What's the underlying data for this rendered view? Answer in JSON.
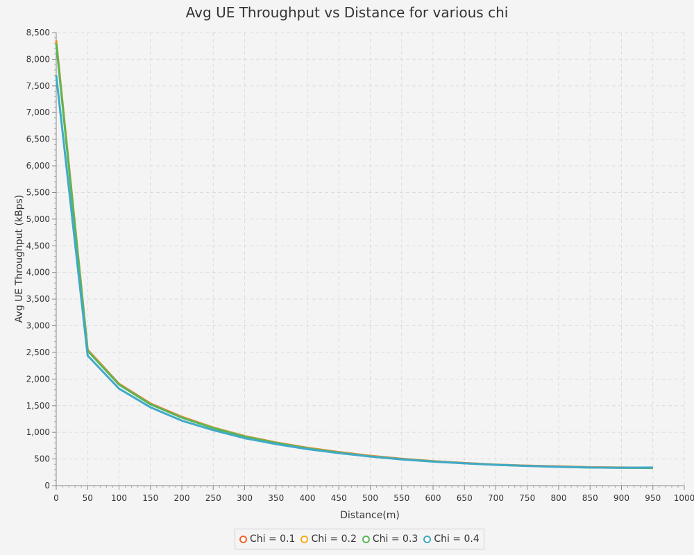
{
  "chart_data": {
    "type": "line",
    "title": "Avg UE Throughput vs Distance for various chi",
    "xlabel": "Distance(m)",
    "ylabel": "Avg UE Throughput (kBps)",
    "xlim": [
      0,
      1000
    ],
    "ylim": [
      0,
      8500
    ],
    "x_ticks": [
      "0",
      "50",
      "100",
      "150",
      "200",
      "250",
      "300",
      "350",
      "400",
      "450",
      "500",
      "550",
      "600",
      "650",
      "700",
      "750",
      "800",
      "850",
      "900",
      "950",
      "1000"
    ],
    "y_ticks": [
      "0",
      "500",
      "1,000",
      "1,500",
      "2,000",
      "2,500",
      "3,000",
      "3,500",
      "4,000",
      "4,500",
      "5,000",
      "5,500",
      "6,000",
      "6,500",
      "7,000",
      "7,500",
      "8,000",
      "8,500"
    ],
    "grid": true,
    "legend_position": "bottom",
    "x": [
      0,
      50,
      100,
      150,
      200,
      250,
      300,
      350,
      400,
      450,
      500,
      550,
      600,
      650,
      700,
      750,
      800,
      850,
      900,
      950
    ],
    "series": [
      {
        "name": "Chi = 0.1",
        "color": "#f3622d",
        "values": [
          8350,
          2550,
          1910,
          1540,
          1290,
          1090,
          930,
          810,
          710,
          630,
          560,
          505,
          460,
          425,
          395,
          375,
          360,
          345,
          340,
          335
        ]
      },
      {
        "name": "Chi = 0.2",
        "color": "#fba71b",
        "values": [
          8330,
          2540,
          1900,
          1530,
          1280,
          1085,
          925,
          805,
          705,
          625,
          555,
          500,
          458,
          422,
          393,
          372,
          357,
          343,
          338,
          333
        ]
      },
      {
        "name": "Chi = 0.3",
        "color": "#57b757",
        "values": [
          8300,
          2530,
          1895,
          1525,
          1275,
          1080,
          920,
          800,
          700,
          620,
          550,
          498,
          455,
          420,
          390,
          370,
          355,
          340,
          335,
          330
        ]
      },
      {
        "name": "Chi = 0.4",
        "color": "#41a9c9",
        "values": [
          7700,
          2440,
          1820,
          1470,
          1220,
          1040,
          890,
          780,
          685,
          610,
          545,
          492,
          450,
          418,
          390,
          370,
          352,
          340,
          336,
          340
        ]
      }
    ]
  }
}
